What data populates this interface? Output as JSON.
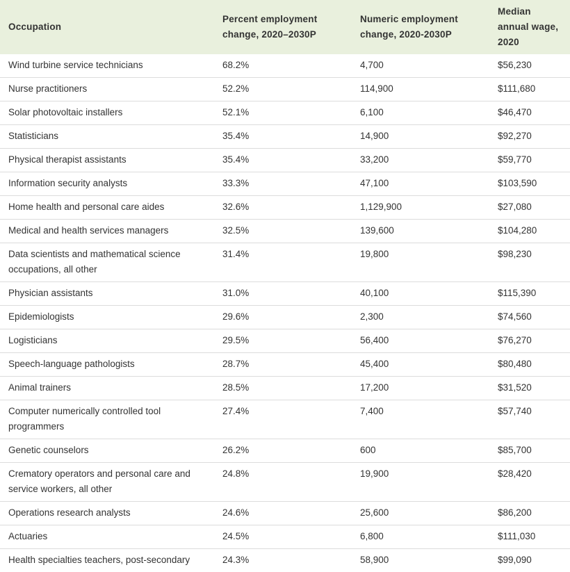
{
  "table": {
    "header": [
      "Occupation",
      "Percent employment change, 2020–2030P",
      "Numeric employment change, 2020-2030P",
      "Median annual wage, 2020"
    ],
    "rows": [
      [
        "Wind turbine service technicians",
        "68.2%",
        "4,700",
        "$56,230"
      ],
      [
        "Nurse practitioners",
        "52.2%",
        "114,900",
        "$111,680"
      ],
      [
        "Solar photovoltaic installers",
        "52.1%",
        "6,100",
        "$46,470"
      ],
      [
        "Statisticians",
        "35.4%",
        "14,900",
        "$92,270"
      ],
      [
        "Physical therapist assistants",
        "35.4%",
        "33,200",
        "$59,770"
      ],
      [
        "Information security analysts",
        "33.3%",
        "47,100",
        "$103,590"
      ],
      [
        "Home health and personal care aides",
        "32.6%",
        "1,129,900",
        "$27,080"
      ],
      [
        "Medical and health services managers",
        "32.5%",
        "139,600",
        "$104,280"
      ],
      [
        "Data scientists and mathematical science occupations, all other",
        "31.4%",
        "19,800",
        "$98,230"
      ],
      [
        "Physician assistants",
        "31.0%",
        "40,100",
        "$115,390"
      ],
      [
        "Epidemiologists",
        "29.6%",
        "2,300",
        "$74,560"
      ],
      [
        "Logisticians",
        "29.5%",
        "56,400",
        "$76,270"
      ],
      [
        "Speech-language pathologists",
        "28.7%",
        "45,400",
        "$80,480"
      ],
      [
        "Animal trainers",
        "28.5%",
        "17,200",
        "$31,520"
      ],
      [
        "Computer numerically controlled tool programmers",
        "27.4%",
        "7,400",
        "$57,740"
      ],
      [
        "Genetic counselors",
        "26.2%",
        "600",
        "$85,700"
      ],
      [
        "Crematory operators and personal care and service workers, all other",
        "24.8%",
        "19,900",
        "$28,420"
      ],
      [
        "Operations research analysts",
        "24.6%",
        "25,600",
        "$86,200"
      ],
      [
        "Actuaries",
        "24.5%",
        "6,800",
        "$111,030"
      ],
      [
        "Health specialties teachers, post-secondary",
        "24.3%",
        "58,900",
        "$99,090"
      ]
    ]
  }
}
